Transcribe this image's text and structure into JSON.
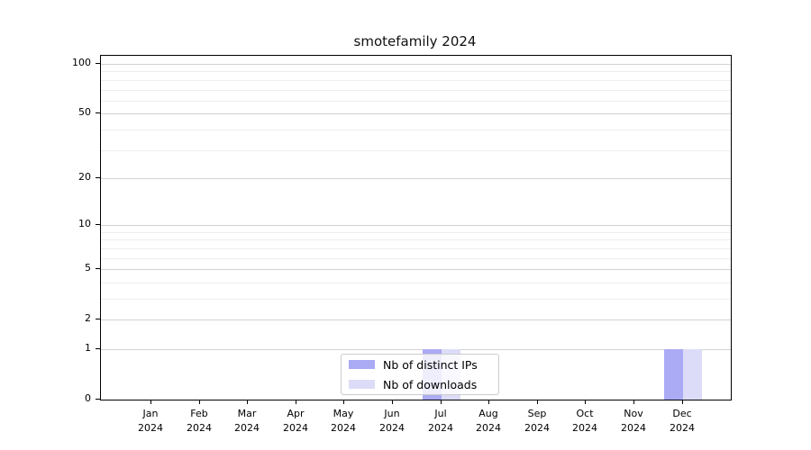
{
  "title": "smotefamily 2024",
  "colors": {
    "bar_distinct_ips": "#aaaaf5",
    "bar_downloads": "#dcdcf8",
    "grid_major": "#d2d2d2",
    "grid_minor": "#ededed",
    "axis": "#000000",
    "legend_border": "#cccccc"
  },
  "legend": {
    "items": [
      {
        "label": "Nb of distinct IPs",
        "color": "#aaaaf5"
      },
      {
        "label": "Nb of downloads",
        "color": "#dcdcf8"
      }
    ]
  },
  "chart_data": {
    "type": "bar",
    "title": "smotefamily 2024",
    "xlabel": "",
    "ylabel": "",
    "yscale": "log1p",
    "ylim": [
      0,
      112
    ],
    "grid": true,
    "legend_position": "bottom-center",
    "categories": [
      "Jan 2024",
      "Feb 2024",
      "Mar 2024",
      "Apr 2024",
      "May 2024",
      "Jun 2024",
      "Jul 2024",
      "Aug 2024",
      "Sep 2024",
      "Oct 2024",
      "Nov 2024",
      "Dec 2024"
    ],
    "x_ticks": [
      {
        "line1": "Jan",
        "line2": "2024"
      },
      {
        "line1": "Feb",
        "line2": "2024"
      },
      {
        "line1": "Mar",
        "line2": "2024"
      },
      {
        "line1": "Apr",
        "line2": "2024"
      },
      {
        "line1": "May",
        "line2": "2024"
      },
      {
        "line1": "Jun",
        "line2": "2024"
      },
      {
        "line1": "Jul",
        "line2": "2024"
      },
      {
        "line1": "Aug",
        "line2": "2024"
      },
      {
        "line1": "Sep",
        "line2": "2024"
      },
      {
        "line1": "Oct",
        "line2": "2024"
      },
      {
        "line1": "Nov",
        "line2": "2024"
      },
      {
        "line1": "Dec",
        "line2": "2024"
      }
    ],
    "y_major_ticks": [
      {
        "label": "0",
        "value": 0
      },
      {
        "label": "1",
        "value": 1
      },
      {
        "label": "2",
        "value": 2
      },
      {
        "label": "5",
        "value": 5
      },
      {
        "label": "10",
        "value": 10
      },
      {
        "label": "20",
        "value": 20
      },
      {
        "label": "50",
        "value": 50
      },
      {
        "label": "100",
        "value": 100
      }
    ],
    "y_minor_gridlines": [
      3,
      4,
      6,
      7,
      8,
      9,
      30,
      40,
      60,
      70,
      80,
      90
    ],
    "series": [
      {
        "name": "Nb of distinct IPs",
        "color": "#aaaaf5",
        "values": [
          0,
          0,
          0,
          0,
          0,
          0,
          1,
          0,
          0,
          0,
          0,
          1
        ]
      },
      {
        "name": "Nb of downloads",
        "color": "#dcdcf8",
        "values": [
          0,
          0,
          0,
          0,
          0,
          0,
          1,
          0,
          0,
          0,
          0,
          1
        ]
      }
    ]
  }
}
